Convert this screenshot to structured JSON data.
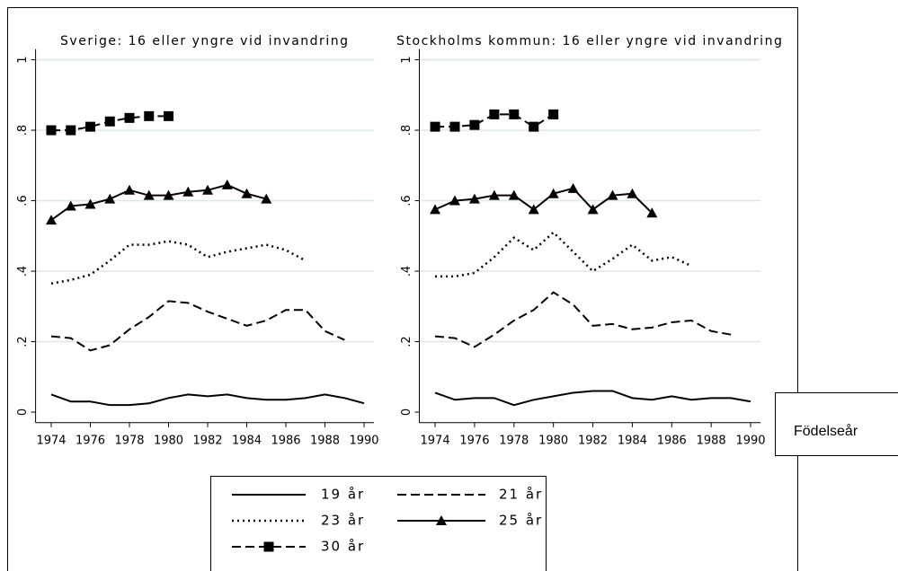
{
  "chart_data": [
    {
      "type": "line",
      "title": "Sverige: 16 eller yngre vid invandring",
      "x": [
        1974,
        1975,
        1976,
        1977,
        1978,
        1979,
        1980,
        1981,
        1982,
        1983,
        1984,
        1985,
        1986,
        1987,
        1988,
        1989,
        1990
      ],
      "xlim": [
        1973.2,
        1990.5
      ],
      "xticks": [
        1974,
        1976,
        1978,
        1980,
        1982,
        1984,
        1986,
        1988,
        1990
      ],
      "ylim": [
        -0.03,
        1.03
      ],
      "yticks": [
        0,
        {
          "value": 0.2,
          "label": ".2"
        },
        {
          "value": 0.4,
          "label": ".4"
        },
        {
          "value": 0.6,
          "label": ".6"
        },
        {
          "value": 0.8,
          "label": ".8"
        },
        1
      ],
      "grid": true,
      "series": [
        {
          "name": "19 år",
          "color": "#000000",
          "line_style": "solid",
          "marker": "none",
          "values": [
            0.05,
            0.03,
            0.03,
            0.02,
            0.02,
            0.025,
            0.04,
            0.05,
            0.045,
            0.05,
            0.04,
            0.035,
            0.035,
            0.04,
            0.05,
            0.04,
            0.025
          ]
        },
        {
          "name": "21 år",
          "color": "#000000",
          "line_style": "dashed",
          "marker": "none",
          "values": [
            0.215,
            0.21,
            0.175,
            0.19,
            0.235,
            0.27,
            0.315,
            0.31,
            0.285,
            0.265,
            0.245,
            0.26,
            0.29,
            0.29,
            0.23,
            0.205,
            null
          ]
        },
        {
          "name": "23 år",
          "color": "#000000",
          "line_style": "dotted",
          "marker": "none",
          "values": [
            0.365,
            0.375,
            0.39,
            0.43,
            0.475,
            0.475,
            0.485,
            0.475,
            0.44,
            0.455,
            0.465,
            0.475,
            0.46,
            0.43,
            null,
            null,
            null
          ]
        },
        {
          "name": "25 år",
          "color": "#000000",
          "line_style": "solid",
          "marker": "triangle",
          "values": [
            0.545,
            0.585,
            0.59,
            0.605,
            0.63,
            0.615,
            0.615,
            0.625,
            0.63,
            0.645,
            0.62,
            0.605,
            null,
            null,
            null,
            null,
            null
          ]
        },
        {
          "name": "30 år",
          "color": "#000000",
          "line_style": "dashed",
          "marker": "square",
          "values": [
            0.8,
            0.8,
            0.81,
            0.825,
            0.835,
            0.84,
            0.84,
            null,
            null,
            null,
            null,
            null,
            null,
            null,
            null,
            null,
            null
          ]
        }
      ]
    },
    {
      "type": "line",
      "title": "Stockholms kommun: 16 eller yngre vid invandring",
      "xlabel": "Födelseår",
      "x": [
        1974,
        1975,
        1976,
        1977,
        1978,
        1979,
        1980,
        1981,
        1982,
        1983,
        1984,
        1985,
        1986,
        1987,
        1988,
        1989,
        1990
      ],
      "xlim": [
        1973.2,
        1990.5
      ],
      "xticks": [
        1974,
        1976,
        1978,
        1980,
        1982,
        1984,
        1986,
        1988,
        1990
      ],
      "ylim": [
        -0.03,
        1.03
      ],
      "yticks": [
        0,
        {
          "value": 0.2,
          "label": ".2"
        },
        {
          "value": 0.4,
          "label": ".4"
        },
        {
          "value": 0.6,
          "label": ".6"
        },
        {
          "value": 0.8,
          "label": ".8"
        },
        1
      ],
      "grid": true,
      "series": [
        {
          "color": "#000000",
          "line_style": "solid",
          "marker": "none",
          "values": [
            0.055,
            0.035,
            0.04,
            0.04,
            0.02,
            0.035,
            0.045,
            0.055,
            0.06,
            0.06,
            0.04,
            0.035,
            0.045,
            0.035,
            0.04,
            0.04,
            0.03
          ]
        },
        {
          "color": "#000000",
          "line_style": "dashed",
          "marker": "none",
          "values": [
            0.215,
            0.21,
            0.185,
            0.22,
            0.26,
            0.29,
            0.34,
            0.305,
            0.245,
            0.25,
            0.235,
            0.24,
            0.255,
            0.26,
            0.23,
            0.22,
            null
          ]
        },
        {
          "color": "#000000",
          "line_style": "dotted",
          "marker": "none",
          "values": [
            0.385,
            0.385,
            0.395,
            0.44,
            0.495,
            0.46,
            0.51,
            0.455,
            0.4,
            0.435,
            0.475,
            0.43,
            0.44,
            0.415,
            null,
            null,
            null
          ]
        },
        {
          "color": "#000000",
          "line_style": "solid",
          "marker": "triangle",
          "values": [
            0.575,
            0.6,
            0.605,
            0.615,
            0.615,
            0.575,
            0.62,
            0.635,
            0.575,
            0.615,
            0.62,
            0.565,
            null,
            null,
            null,
            null,
            null
          ]
        },
        {
          "color": "#000000",
          "line_style": "dashed",
          "marker": "square",
          "values": [
            0.81,
            0.81,
            0.815,
            0.845,
            0.845,
            0.81,
            0.845,
            null,
            null,
            null,
            null,
            null,
            null,
            null,
            null,
            null,
            null
          ]
        }
      ]
    }
  ]
}
